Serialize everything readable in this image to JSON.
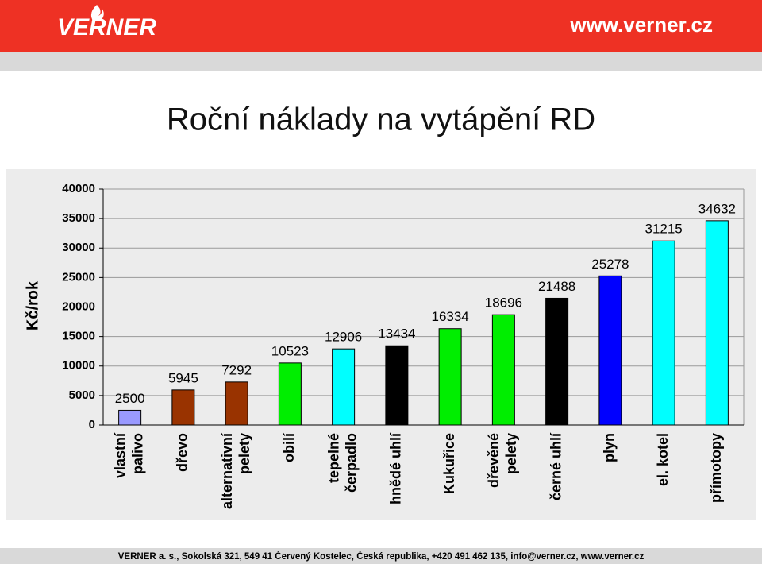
{
  "header": {
    "logo": "VERNER",
    "url": "www.verner.cz"
  },
  "chart_data": {
    "type": "bar",
    "title": "Roční náklady na vytápění RD",
    "y_label": "Kč/rok",
    "categories": [
      [
        "vlastní",
        "palivo"
      ],
      [
        "dřevo"
      ],
      [
        "alternativní",
        "pelety"
      ],
      [
        "obilí"
      ],
      [
        "tepelné",
        "čerpadlo"
      ],
      [
        "hnědé uhlí"
      ],
      [
        "Kukuřice"
      ],
      [
        "dřevěné",
        "pelety"
      ],
      [
        "černé uhlí"
      ],
      [
        "plyn"
      ],
      [
        "el. kotel"
      ],
      [
        "přímotopy"
      ]
    ],
    "values": [
      2500,
      5945,
      7292,
      10523,
      12906,
      13434,
      16334,
      18696,
      21488,
      25278,
      31215,
      34632
    ],
    "colors": [
      "#9999ff",
      "#993300",
      "#993300",
      "#00ee00",
      "#00ffff",
      "#000000",
      "#00ee00",
      "#00ee00",
      "#000000",
      "#0000ff",
      "#00ffff",
      "#00ffff"
    ],
    "ylim": [
      0,
      40000
    ],
    "yticks": [
      0,
      5000,
      10000,
      15000,
      20000,
      25000,
      30000,
      35000,
      40000
    ],
    "grid": true
  },
  "footer": "VERNER a. s., Sokolská 321, 549 41 Červený Kostelec, Česká republika, +420 491 462 135, info@verner.cz, www.verner.cz"
}
